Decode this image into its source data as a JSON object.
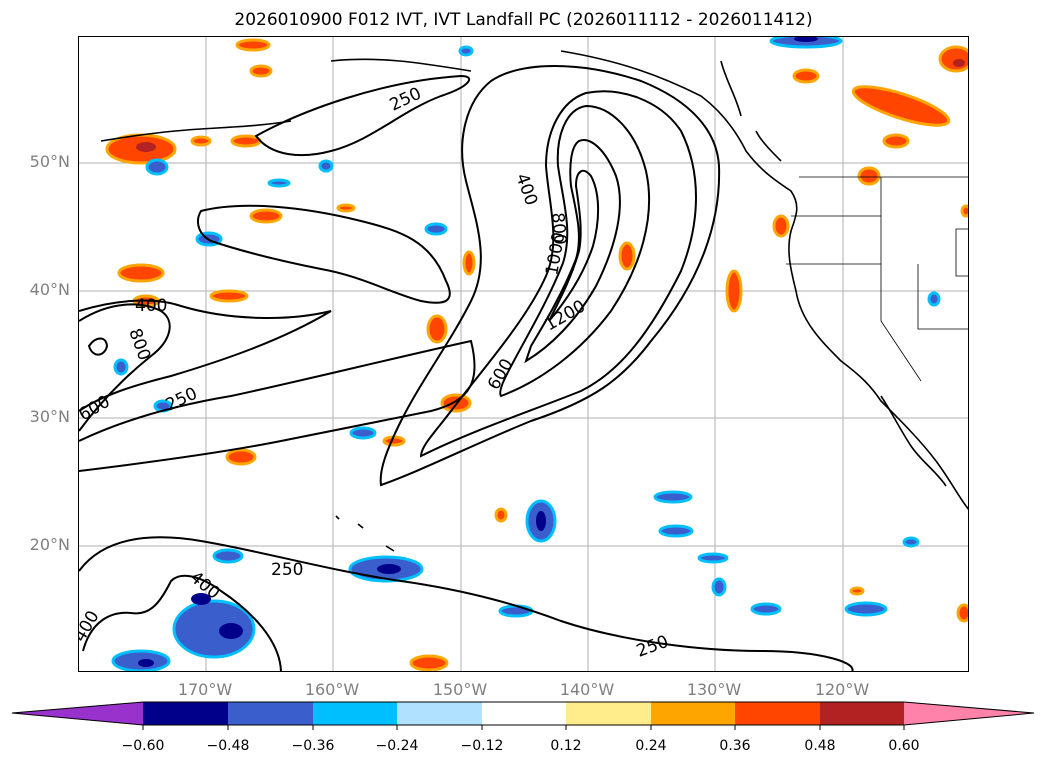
{
  "title": "2026010900 F012 IVT, IVT Landfall PC (2026011112 - 2026011412)",
  "lat_labels": [
    "50°N",
    "40°N",
    "30°N",
    "20°N"
  ],
  "lon_labels": [
    "170°W",
    "160°W",
    "150°W",
    "140°W",
    "130°W",
    "120°W"
  ],
  "contour_labels": [
    "250",
    "250",
    "250",
    "250",
    "400",
    "400",
    "400",
    "400",
    "600",
    "600",
    "800",
    "800",
    "1000",
    "1200"
  ],
  "colorbar": {
    "ticks": [
      "−0.60",
      "−0.48",
      "−0.36",
      "−0.24",
      "−0.12",
      "0.12",
      "0.24",
      "0.36",
      "0.48",
      "0.60"
    ],
    "colors": [
      "#9932cc",
      "#00008b",
      "#3a5fcd",
      "#00bfff",
      "#b0e2ff",
      "#ffffff",
      "#ffec8b",
      "#ffa500",
      "#ff4500",
      "#b22222",
      "#ff82ab"
    ]
  },
  "fill_colors": {
    "neg_outer": "#00bfff",
    "neg_mid": "#3a5fcd",
    "neg_inner": "#00008b",
    "pos_outer": "#ffa500",
    "pos_mid": "#ff4500",
    "pos_inner": "#b22222"
  }
}
